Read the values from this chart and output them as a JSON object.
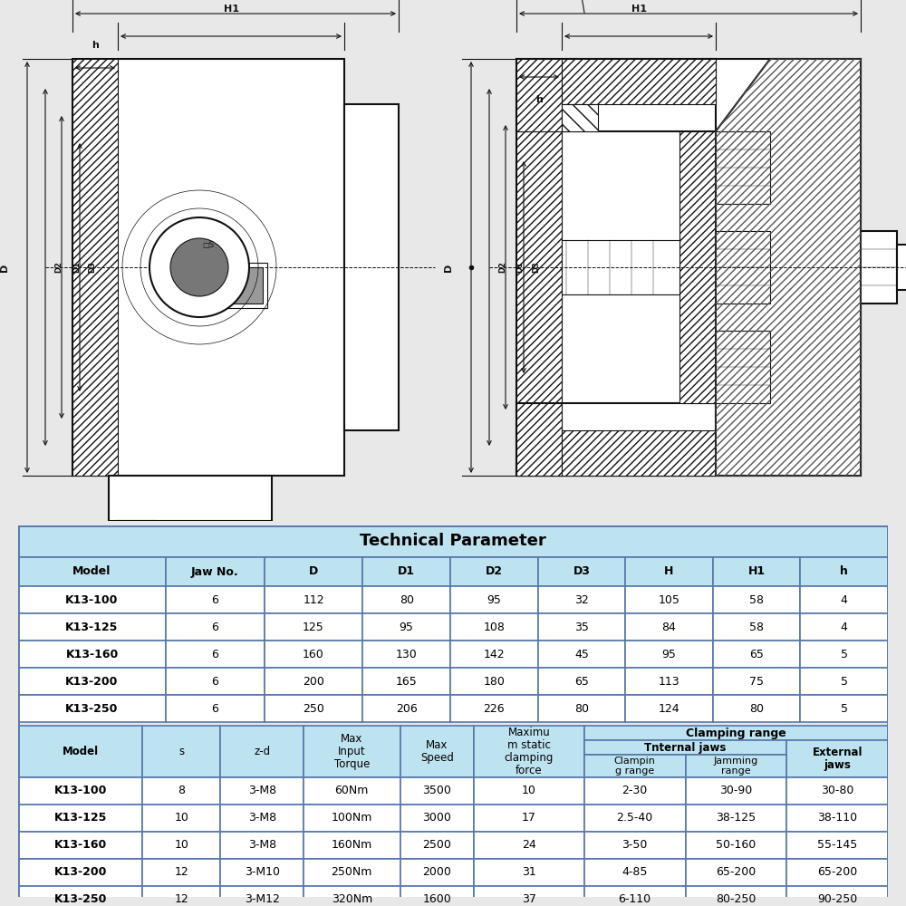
{
  "title": "Technical Parameter",
  "table1_headers": [
    "Model",
    "Jaw No.",
    "D",
    "D1",
    "D2",
    "D3",
    "H",
    "H1",
    "h"
  ],
  "table1_rows": [
    [
      "K13-100",
      "6",
      "112",
      "80",
      "95",
      "32",
      "105",
      "58",
      "4"
    ],
    [
      "K13-125",
      "6",
      "125",
      "95",
      "108",
      "35",
      "84",
      "58",
      "4"
    ],
    [
      "K13-160",
      "6",
      "160",
      "130",
      "142",
      "45",
      "95",
      "65",
      "5"
    ],
    [
      "K13-200",
      "6",
      "200",
      "165",
      "180",
      "65",
      "113",
      "75",
      "5"
    ],
    [
      "K13-250",
      "6",
      "250",
      "206",
      "226",
      "80",
      "124",
      "80",
      "5"
    ]
  ],
  "table2_col_labels": [
    "Model",
    "s",
    "z-d",
    "Max\nInput\nTorque",
    "Max\nSpeed",
    "Maximu\nm static\nclamping\nforce"
  ],
  "table2_clamping_label": "Clamping range",
  "table2_internal_label": "Tnternal jaws",
  "table2_external_label": "External\njaws",
  "table2_sub_labels": [
    "Clampin\ng range",
    "Jamming\nrange",
    "Clampin\ng range"
  ],
  "table2_rows": [
    [
      "K13-100",
      "8",
      "3-M8",
      "60Nm",
      "3500",
      "10",
      "2-30",
      "30-90",
      "30-80"
    ],
    [
      "K13-125",
      "10",
      "3-M8",
      "100Nm",
      "3000",
      "17",
      "2.5-40",
      "38-125",
      "38-110"
    ],
    [
      "K13-160",
      "10",
      "3-M8",
      "160Nm",
      "2500",
      "24",
      "3-50",
      "50-160",
      "55-145"
    ],
    [
      "K13-200",
      "12",
      "3-M10",
      "250Nm",
      "2000",
      "31",
      "4-85",
      "65-200",
      "65-200"
    ],
    [
      "K13-250",
      "12",
      "3-M12",
      "320Nm",
      "1600",
      "37",
      "6-110",
      "80-250",
      "90-250"
    ]
  ],
  "bg_blue_light": "#bee3f0",
  "bg_white": "#ffffff",
  "border_color": "#5577aa",
  "text_dark": "#111111",
  "fig_bg": "#e8e8e8"
}
